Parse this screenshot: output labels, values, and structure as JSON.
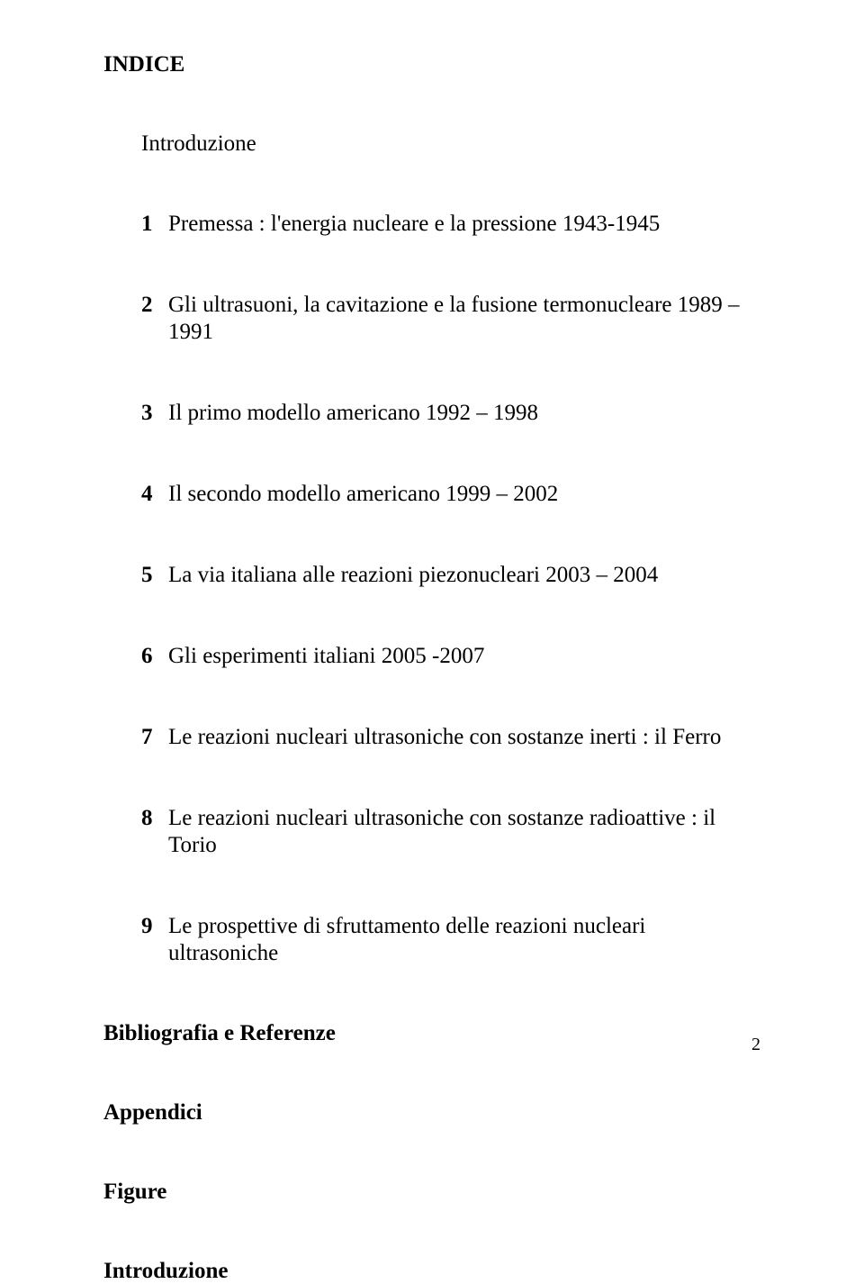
{
  "title": "INDICE",
  "intro": "Introduzione",
  "toc": [
    {
      "num": "1",
      "text": "Premessa : l'energia nucleare e la pressione 1943-1945"
    },
    {
      "num": "2",
      "text": "Gli ultrasuoni, la cavitazione e la fusione termonucleare 1989 – 1991"
    },
    {
      "num": "3",
      "text": "Il primo modello americano 1992 – 1998"
    },
    {
      "num": "4",
      "text": "Il secondo modello americano 1999 – 2002"
    },
    {
      "num": "5",
      "text": "La via italiana alle reazioni piezonucleari 2003 – 2004"
    },
    {
      "num": "6",
      "text": "Gli esperimenti italiani 2005 -2007"
    },
    {
      "num": "7",
      "text": "Le reazioni nucleari ultrasoniche con sostanze inerti : il Ferro"
    },
    {
      "num": "8",
      "text": "Le reazioni nucleari ultrasoniche con sostanze radioattive : il Torio"
    },
    {
      "num": "9",
      "text": "Le prospettive di sfruttamento delle reazioni nucleari ultrasoniche"
    }
  ],
  "sections": [
    "Bibliografia e Referenze",
    "Appendici",
    "Figure",
    "Introduzione"
  ],
  "page_number": "2"
}
